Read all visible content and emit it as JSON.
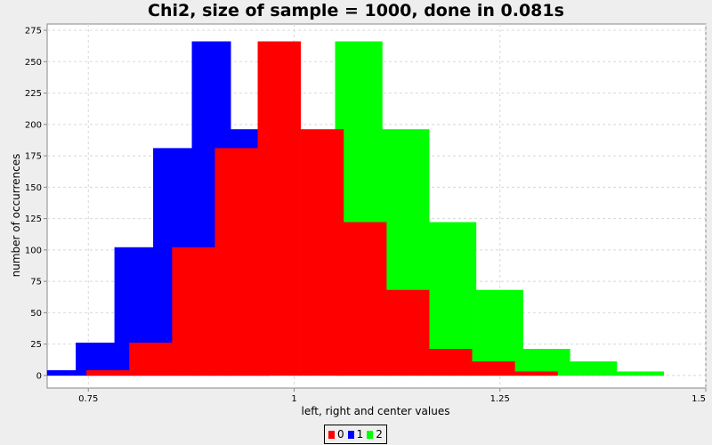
{
  "chart_data": {
    "type": "bar",
    "title": "Chi2, size of sample = 1000, done in 0.081s",
    "xlabel": "left, right and center values",
    "ylabel": "number of occurrences",
    "xlim": [
      0.7,
      1.5
    ],
    "ylim": [
      -10,
      280
    ],
    "xticks": [
      0.75,
      1,
      1.25,
      1.5
    ],
    "xtick_labels": [
      "0.75",
      "1",
      "1.25",
      "1.5"
    ],
    "yticks": [
      0,
      25,
      50,
      75,
      100,
      125,
      150,
      175,
      200,
      225,
      250,
      275
    ],
    "grid": true,
    "legend_position": "bottom-center",
    "series": [
      {
        "name": "1",
        "color": "#0000ff",
        "bins": [
          {
            "x0": 0.7,
            "x1": 0.735,
            "value": 4
          },
          {
            "x0": 0.735,
            "x1": 0.782,
            "value": 26
          },
          {
            "x0": 0.782,
            "x1": 0.829,
            "value": 102
          },
          {
            "x0": 0.829,
            "x1": 0.876,
            "value": 181
          },
          {
            "x0": 0.876,
            "x1": 0.923,
            "value": 266
          },
          {
            "x0": 0.923,
            "x1": 0.97,
            "value": 196
          }
        ]
      },
      {
        "name": "2",
        "color": "#00ff00",
        "bins": [
          {
            "x0": 1.05,
            "x1": 1.107,
            "value": 266
          },
          {
            "x0": 1.107,
            "x1": 1.164,
            "value": 196
          },
          {
            "x0": 1.164,
            "x1": 1.221,
            "value": 122
          },
          {
            "x0": 1.221,
            "x1": 1.278,
            "value": 68
          },
          {
            "x0": 1.278,
            "x1": 1.335,
            "value": 21
          },
          {
            "x0": 1.335,
            "x1": 1.392,
            "value": 11
          },
          {
            "x0": 1.392,
            "x1": 1.449,
            "value": 3
          }
        ]
      },
      {
        "name": "0",
        "color": "#ff0000",
        "bins": [
          {
            "x0": 0.748,
            "x1": 0.8,
            "value": 4
          },
          {
            "x0": 0.8,
            "x1": 0.852,
            "value": 26
          },
          {
            "x0": 0.852,
            "x1": 0.904,
            "value": 102
          },
          {
            "x0": 0.904,
            "x1": 0.956,
            "value": 181
          },
          {
            "x0": 0.956,
            "x1": 1.008,
            "value": 266
          },
          {
            "x0": 1.008,
            "x1": 1.06,
            "value": 196
          },
          {
            "x0": 1.06,
            "x1": 1.112,
            "value": 122
          },
          {
            "x0": 1.112,
            "x1": 1.164,
            "value": 68
          },
          {
            "x0": 1.164,
            "x1": 1.216,
            "value": 21
          },
          {
            "x0": 1.216,
            "x1": 1.268,
            "value": 11
          },
          {
            "x0": 1.268,
            "x1": 1.32,
            "value": 3
          }
        ]
      }
    ],
    "legend": [
      {
        "label": "0",
        "color": "#ff0000"
      },
      {
        "label": "1",
        "color": "#0000ff"
      },
      {
        "label": "2",
        "color": "#00ff00"
      }
    ]
  }
}
